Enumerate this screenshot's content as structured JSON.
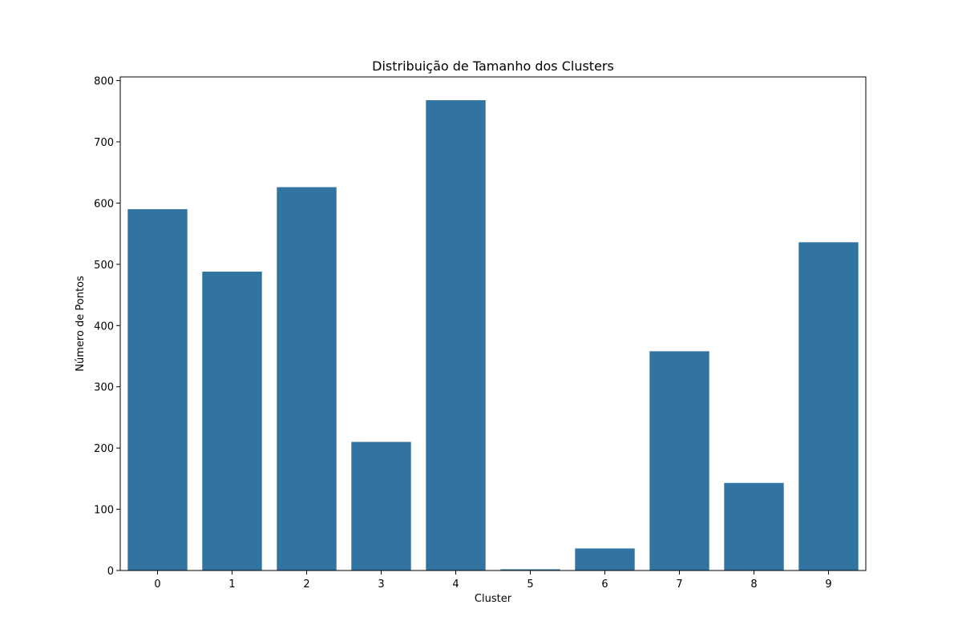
{
  "chart_data": {
    "type": "bar",
    "title": "Distribuição de Tamanho dos Clusters",
    "xlabel": "Cluster",
    "ylabel": "Número de Pontos",
    "categories": [
      "0",
      "1",
      "2",
      "3",
      "4",
      "5",
      "6",
      "7",
      "8",
      "9"
    ],
    "values": [
      590,
      488,
      626,
      210,
      768,
      2,
      36,
      358,
      143,
      536
    ],
    "ylim": [
      0,
      806
    ],
    "yticks": [
      0,
      100,
      200,
      300,
      400,
      500,
      600,
      700,
      800
    ],
    "grid": false,
    "bar_color": "#3274a1"
  }
}
